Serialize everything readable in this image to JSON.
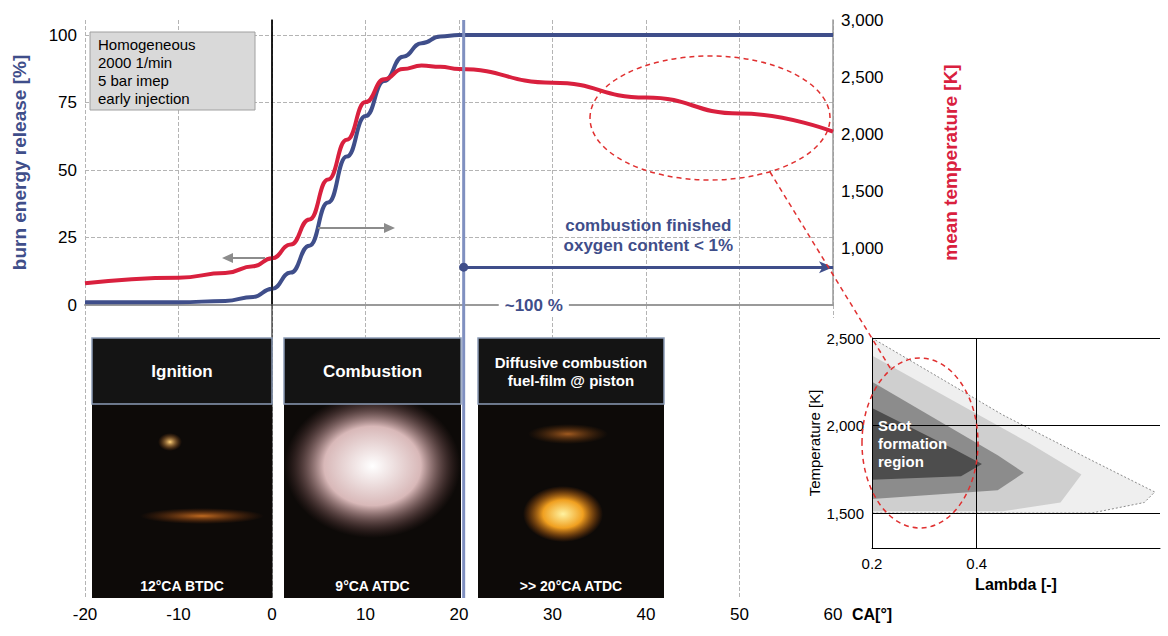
{
  "chart_data": [
    {
      "type": "line",
      "note": [
        "Homogeneous",
        "2000 1/min",
        "5 bar imep",
        "early injection"
      ],
      "x_label": "CA[°]",
      "y_label": "burn energy release [%]",
      "y2_label": "mean temperature [K]",
      "x": [
        -20,
        -10,
        -5,
        -2,
        0,
        2,
        4,
        6,
        8,
        10,
        12,
        14,
        16,
        18,
        20,
        30,
        40,
        50,
        60
      ],
      "series": [
        {
          "color": "#3f4e8a",
          "values": [
            1,
            1,
            1.5,
            3,
            6,
            12,
            22,
            38,
            55,
            70,
            83,
            92,
            97,
            99.5,
            100,
            100,
            100,
            100,
            100
          ]
        },
        {
          "color": "#d9203e",
          "axis": "y2",
          "values": [
            690,
            740,
            780,
            840,
            910,
            1030,
            1250,
            1600,
            1950,
            2280,
            2480,
            2570,
            2600,
            2590,
            2570,
            2450,
            2320,
            2180,
            2020
          ]
        }
      ],
      "xlim": [
        -20,
        60
      ],
      "xticks": [
        -20,
        -10,
        0,
        10,
        20,
        30,
        40,
        50,
        60
      ],
      "ylim": [
        0,
        105.6
      ],
      "yticks": [
        0,
        25,
        50,
        75,
        100
      ],
      "y2lim": [
        500,
        3000
      ],
      "y2ticks": [
        1000,
        1500,
        2000,
        2500,
        3000
      ],
      "grid": true,
      "vertical_lines": [
        {
          "x": 0,
          "color": "#000000"
        },
        {
          "x": 20.5,
          "color": "#8090c0"
        }
      ],
      "annotations": [
        {
          "text": [
            "combustion finished",
            "oxygen content < 1%"
          ],
          "x": [
            20.5,
            60
          ],
          "y": 14,
          "color": "#3f4e8a"
        },
        {
          "text": "~100 %",
          "x": 28,
          "y": 0,
          "color": "#3f4e8a"
        }
      ],
      "images": [
        {
          "title": [
            "Ignition"
          ],
          "time": "12°CA BTDC"
        },
        {
          "title": [
            "Combustion"
          ],
          "time": "9°CA ATDC"
        },
        {
          "title": [
            "Diffusive combustion",
            "fuel-film @ piston"
          ],
          "time": ">> 20°CA ATDC"
        }
      ]
    },
    {
      "type": "contour",
      "x_label": "Lambda [-]",
      "y_label": "Temperature [K]",
      "xlim": [
        0.2,
        0.75
      ],
      "xticks": [
        0.2,
        0.4
      ],
      "ylim": [
        1300,
        2500
      ],
      "yticks": [
        1500,
        2000,
        2500
      ],
      "grid": true,
      "regions": [
        {
          "color": "#efefef",
          "points": [
            [
              0.2,
              2500
            ],
            [
              0.45,
              2060
            ],
            [
              0.62,
              1800
            ],
            [
              0.74,
              1620
            ],
            [
              0.72,
              1560
            ],
            [
              0.62,
              1500
            ],
            [
              0.2,
              1500
            ]
          ]
        },
        {
          "color": "#cfcfcf",
          "points": [
            [
              0.2,
              2400
            ],
            [
              0.5,
              1900
            ],
            [
              0.6,
              1720
            ],
            [
              0.56,
              1560
            ],
            [
              0.45,
              1510
            ],
            [
              0.2,
              1510
            ]
          ]
        },
        {
          "color": "#8c8c8c",
          "points": [
            [
              0.2,
              2250
            ],
            [
              0.44,
              1830
            ],
            [
              0.49,
              1730
            ],
            [
              0.44,
              1630
            ],
            [
              0.2,
              1580
            ]
          ]
        },
        {
          "color": "#4d4d4d",
          "points": [
            [
              0.2,
              2100
            ],
            [
              0.36,
              1860
            ],
            [
              0.41,
              1780
            ],
            [
              0.37,
              1710
            ],
            [
              0.2,
              1690
            ]
          ]
        }
      ],
      "annotation": {
        "text": "Soot formation region",
        "x": 0.2,
        "y": 1900
      }
    }
  ]
}
